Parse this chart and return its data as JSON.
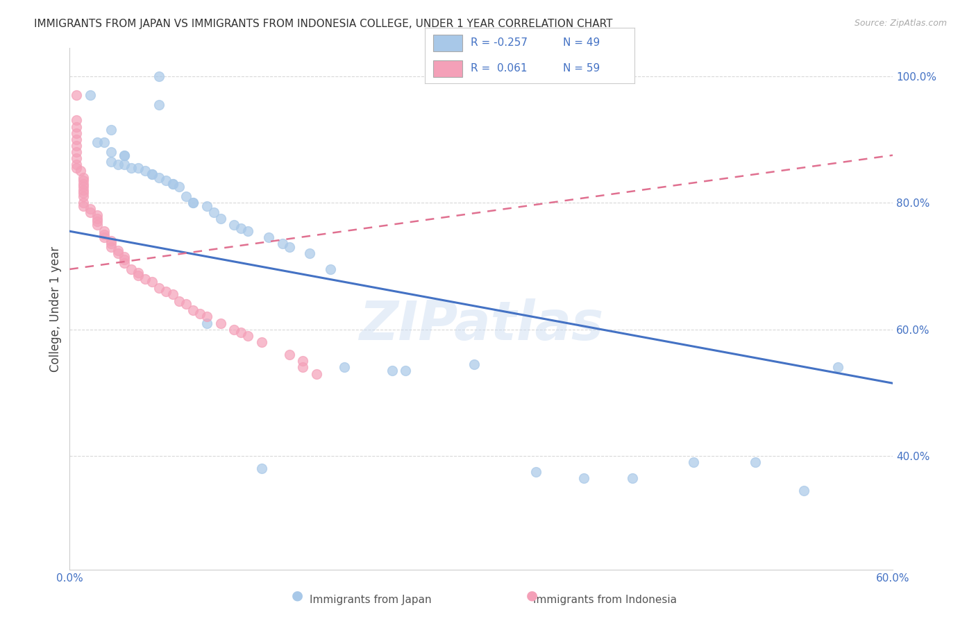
{
  "title": "IMMIGRANTS FROM JAPAN VS IMMIGRANTS FROM INDONESIA COLLEGE, UNDER 1 YEAR CORRELATION CHART",
  "source": "Source: ZipAtlas.com",
  "ylabel": "College, Under 1 year",
  "xmin": 0.0,
  "xmax": 0.6,
  "ymin": 0.22,
  "ymax": 1.045,
  "xticks": [
    0.0,
    0.1,
    0.2,
    0.3,
    0.4,
    0.5,
    0.6
  ],
  "xtick_labels": [
    "0.0%",
    "",
    "",
    "",
    "",
    "",
    "60.0%"
  ],
  "yticks": [
    0.4,
    0.6,
    0.8,
    1.0
  ],
  "ytick_labels": [
    "40.0%",
    "60.0%",
    "80.0%",
    "100.0%"
  ],
  "legend_japan_R": "-0.257",
  "legend_japan_N": "49",
  "legend_indonesia_R": "0.061",
  "legend_indonesia_N": "59",
  "japan_color": "#a8c8e8",
  "indonesia_color": "#f4a0b8",
  "japan_line_color": "#4472c4",
  "indonesia_line_color": "#e07090",
  "background_color": "#ffffff",
  "grid_color": "#d8d8d8",
  "watermark": "ZIPatlas",
  "japan_line_x0": 0.0,
  "japan_line_y0": 0.755,
  "japan_line_x1": 0.6,
  "japan_line_y1": 0.515,
  "indonesia_line_x0": 0.0,
  "indonesia_line_y0": 0.695,
  "indonesia_line_x1": 0.6,
  "indonesia_line_y1": 0.875,
  "japan_x": [
    0.015,
    0.03,
    0.065,
    0.065,
    0.02,
    0.025,
    0.03,
    0.04,
    0.04,
    0.03,
    0.035,
    0.04,
    0.045,
    0.05,
    0.055,
    0.06,
    0.06,
    0.065,
    0.07,
    0.075,
    0.075,
    0.08,
    0.085,
    0.09,
    0.09,
    0.1,
    0.105,
    0.11,
    0.12,
    0.125,
    0.13,
    0.145,
    0.155,
    0.16,
    0.175,
    0.19,
    0.2,
    0.235,
    0.245,
    0.295,
    0.34,
    0.375,
    0.41,
    0.455,
    0.5,
    0.535,
    0.56,
    0.1,
    0.14
  ],
  "japan_y": [
    0.97,
    0.915,
    1.0,
    0.955,
    0.895,
    0.895,
    0.88,
    0.875,
    0.875,
    0.865,
    0.86,
    0.86,
    0.855,
    0.855,
    0.85,
    0.845,
    0.845,
    0.84,
    0.835,
    0.83,
    0.83,
    0.825,
    0.81,
    0.8,
    0.8,
    0.795,
    0.785,
    0.775,
    0.765,
    0.76,
    0.755,
    0.745,
    0.735,
    0.73,
    0.72,
    0.695,
    0.54,
    0.535,
    0.535,
    0.545,
    0.375,
    0.365,
    0.365,
    0.39,
    0.39,
    0.345,
    0.54,
    0.61,
    0.38
  ],
  "indonesia_x": [
    0.005,
    0.005,
    0.005,
    0.005,
    0.005,
    0.005,
    0.005,
    0.005,
    0.005,
    0.005,
    0.008,
    0.01,
    0.01,
    0.01,
    0.01,
    0.01,
    0.01,
    0.01,
    0.01,
    0.01,
    0.015,
    0.015,
    0.02,
    0.02,
    0.02,
    0.02,
    0.025,
    0.025,
    0.025,
    0.03,
    0.03,
    0.03,
    0.035,
    0.035,
    0.04,
    0.04,
    0.04,
    0.045,
    0.05,
    0.05,
    0.055,
    0.06,
    0.065,
    0.07,
    0.075,
    0.08,
    0.085,
    0.09,
    0.095,
    0.1,
    0.11,
    0.12,
    0.125,
    0.13,
    0.14,
    0.16,
    0.17,
    0.17,
    0.18
  ],
  "indonesia_y": [
    0.97,
    0.93,
    0.92,
    0.91,
    0.9,
    0.89,
    0.88,
    0.87,
    0.86,
    0.855,
    0.85,
    0.84,
    0.835,
    0.83,
    0.825,
    0.82,
    0.815,
    0.81,
    0.8,
    0.795,
    0.79,
    0.785,
    0.78,
    0.775,
    0.77,
    0.765,
    0.755,
    0.75,
    0.745,
    0.74,
    0.735,
    0.73,
    0.725,
    0.72,
    0.715,
    0.71,
    0.705,
    0.695,
    0.69,
    0.685,
    0.68,
    0.675,
    0.665,
    0.66,
    0.655,
    0.645,
    0.64,
    0.63,
    0.625,
    0.62,
    0.61,
    0.6,
    0.595,
    0.59,
    0.58,
    0.56,
    0.55,
    0.54,
    0.53
  ]
}
